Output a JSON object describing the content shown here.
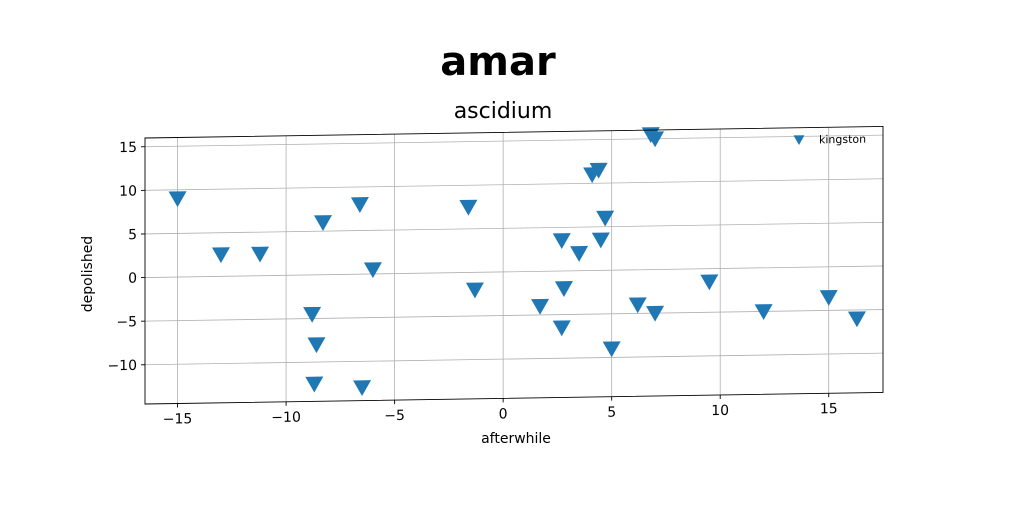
{
  "chart_data": {
    "type": "scatter",
    "title": "amar",
    "subtitle": "ascidium",
    "xlabel": "afterwhile",
    "ylabel": "depolished",
    "xlim": [
      -16.5,
      17.5
    ],
    "ylim": [
      -14.5,
      16.0
    ],
    "xticks": [
      -15,
      -10,
      -5,
      0,
      5,
      10,
      15
    ],
    "xtick_labels": [
      "−15",
      "−10",
      "−5",
      "0",
      "5",
      "10",
      "15"
    ],
    "yticks": [
      -10,
      -5,
      0,
      5,
      10,
      15
    ],
    "ytick_labels": [
      "−10",
      "−5",
      "0",
      "5",
      "10",
      "15"
    ],
    "grid": true,
    "legend_position": "top-right",
    "marker": "triangle-down",
    "series": [
      {
        "name": "kingston",
        "color": "#1f77b4",
        "points": [
          {
            "x": -15.0,
            "y": 9.0
          },
          {
            "x": -13.0,
            "y": 2.5
          },
          {
            "x": -11.2,
            "y": 2.5
          },
          {
            "x": -8.3,
            "y": 6.0
          },
          {
            "x": -6.6,
            "y": 8.0
          },
          {
            "x": -6.0,
            "y": 0.5
          },
          {
            "x": -8.8,
            "y": -4.5
          },
          {
            "x": -8.6,
            "y": -8.0
          },
          {
            "x": -8.7,
            "y": -12.5
          },
          {
            "x": -6.5,
            "y": -13.0
          },
          {
            "x": -1.6,
            "y": 7.5
          },
          {
            "x": -1.3,
            "y": -2.0
          },
          {
            "x": 1.7,
            "y": -4.0
          },
          {
            "x": 2.8,
            "y": -2.0
          },
          {
            "x": 2.7,
            "y": -6.5
          },
          {
            "x": 2.7,
            "y": 3.5
          },
          {
            "x": 3.5,
            "y": 2.0
          },
          {
            "x": 4.1,
            "y": 11.0
          },
          {
            "x": 4.4,
            "y": 11.5
          },
          {
            "x": 4.5,
            "y": 3.5
          },
          {
            "x": 4.7,
            "y": 6.0
          },
          {
            "x": 5.0,
            "y": -9.0
          },
          {
            "x": 6.2,
            "y": -4.0
          },
          {
            "x": 6.8,
            "y": 15.5
          },
          {
            "x": 7.0,
            "y": 15.0
          },
          {
            "x": 7.0,
            "y": -5.0
          },
          {
            "x": 9.5,
            "y": -1.5
          },
          {
            "x": 12.0,
            "y": -5.0
          },
          {
            "x": 15.0,
            "y": -3.5
          },
          {
            "x": 16.3,
            "y": -6.0
          }
        ]
      }
    ]
  }
}
